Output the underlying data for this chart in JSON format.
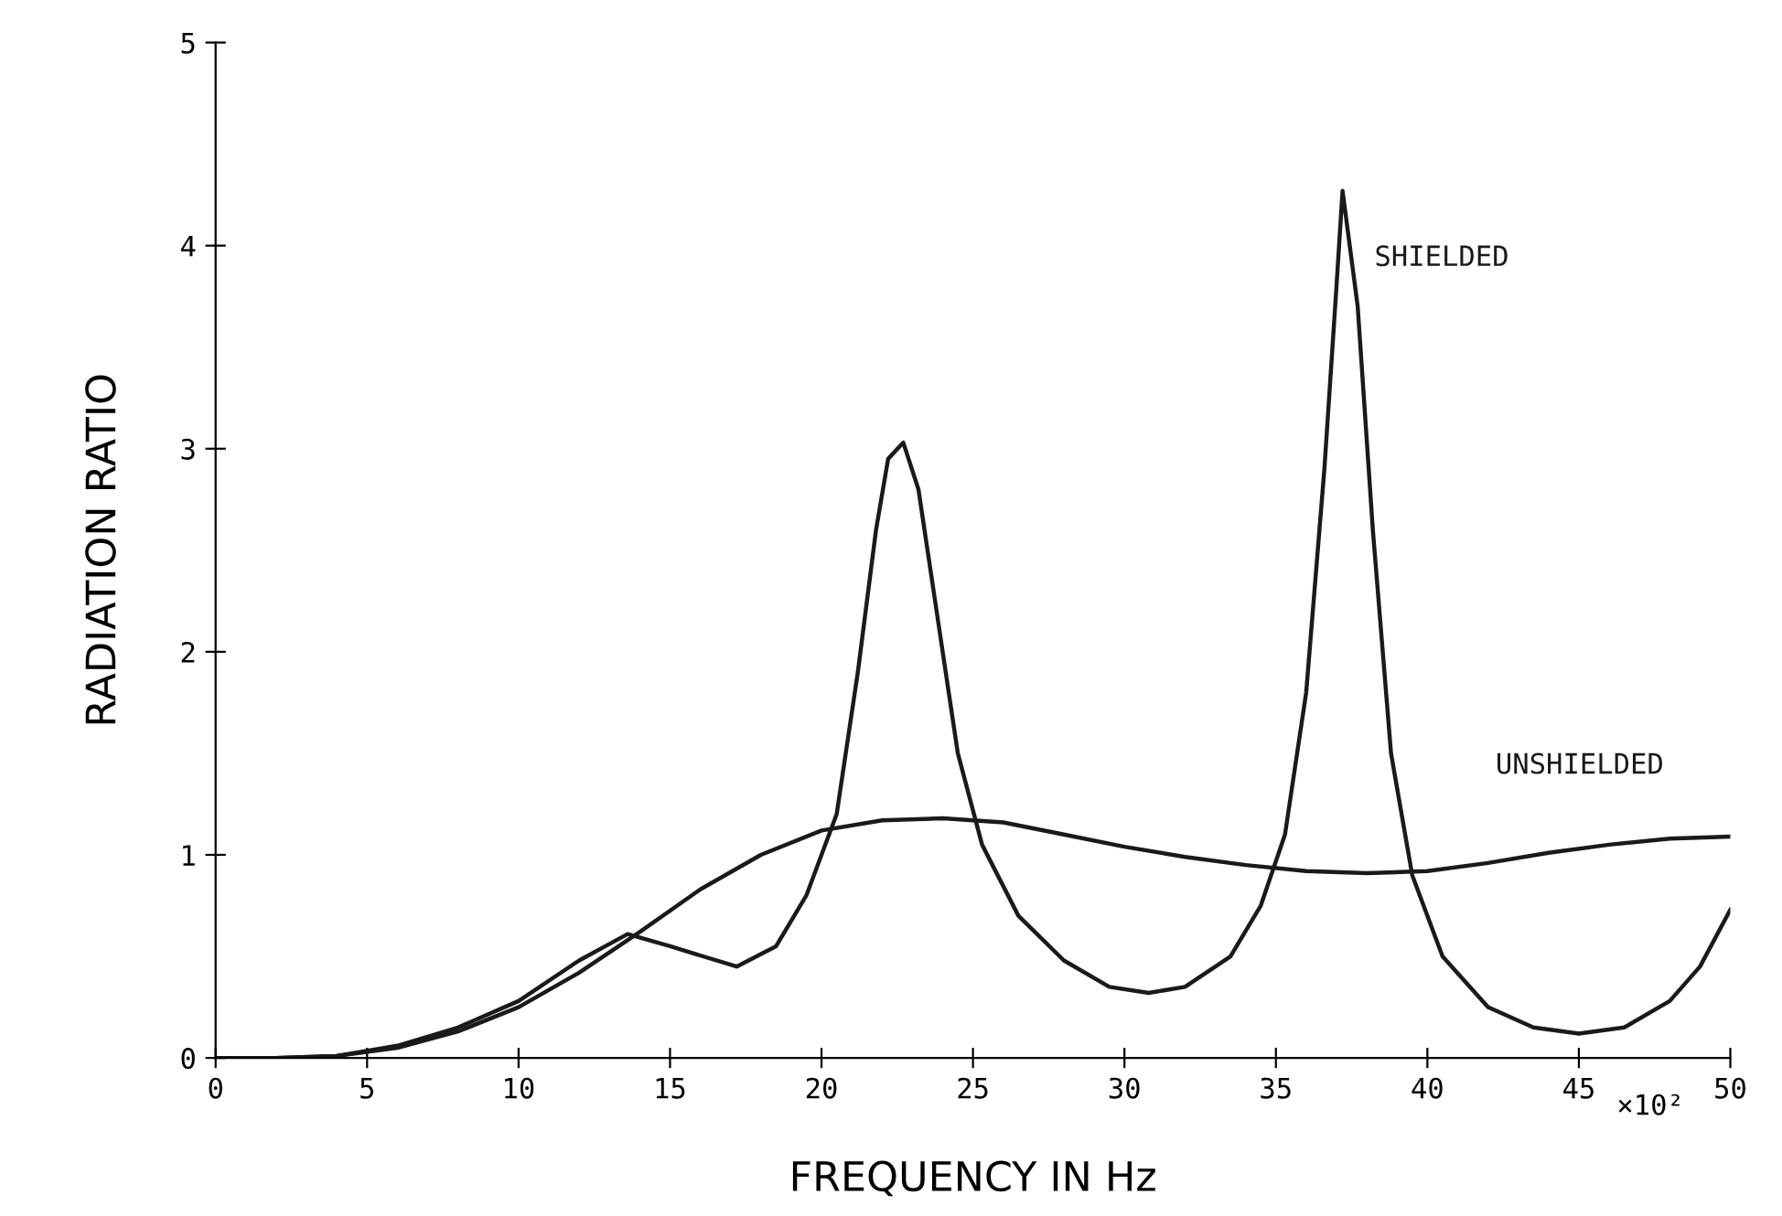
{
  "chart_data": {
    "type": "line",
    "xlabel": "FREQUENCY IN Hz",
    "ylabel": "RADIATION RATIO",
    "annotations": [
      "×10²"
    ],
    "xlim": [
      0,
      50
    ],
    "xticks": [
      0,
      5,
      10,
      15,
      20,
      25,
      30,
      35,
      40,
      45,
      50
    ],
    "ylim": [
      0,
      5
    ],
    "yticks": [
      0,
      1,
      2,
      3,
      4,
      5
    ],
    "grid": false,
    "legend": false,
    "series": [
      {
        "name": "SHIELDED",
        "color": "#1a1a1a",
        "x": [
          0,
          2,
          4,
          6,
          8,
          10,
          12,
          13.6,
          15,
          17.2,
          18.5,
          19.5,
          20.5,
          21.2,
          21.8,
          22.2,
          22.7,
          23.2,
          23.8,
          24.5,
          25.3,
          26.5,
          28,
          29.5,
          30.8,
          32,
          33.5,
          34.5,
          35.3,
          36,
          36.6,
          37.0,
          37.2,
          37.7,
          38.2,
          38.8,
          39.5,
          40.5,
          42,
          43.5,
          45,
          46.5,
          48,
          49,
          50
        ],
        "values": [
          0,
          0,
          0.01,
          0.06,
          0.15,
          0.28,
          0.48,
          0.61,
          0.55,
          0.45,
          0.55,
          0.8,
          1.2,
          1.9,
          2.6,
          2.95,
          3.03,
          2.8,
          2.2,
          1.5,
          1.05,
          0.7,
          0.48,
          0.35,
          0.32,
          0.35,
          0.5,
          0.75,
          1.1,
          1.8,
          2.9,
          3.8,
          4.27,
          3.7,
          2.6,
          1.5,
          0.9,
          0.5,
          0.25,
          0.15,
          0.12,
          0.15,
          0.28,
          0.45,
          0.73
        ]
      },
      {
        "name": "UNSHIELDED",
        "color": "#1a1a1a",
        "x": [
          0,
          2,
          4,
          6,
          8,
          10,
          12,
          14,
          16,
          18,
          20,
          22,
          24,
          26,
          28,
          30,
          32,
          34,
          36,
          38,
          40,
          42,
          44,
          46,
          48,
          50
        ],
        "values": [
          0,
          0,
          0.01,
          0.05,
          0.13,
          0.25,
          0.42,
          0.62,
          0.83,
          1.0,
          1.12,
          1.17,
          1.18,
          1.16,
          1.1,
          1.04,
          0.99,
          0.95,
          0.92,
          0.91,
          0.92,
          0.96,
          1.01,
          1.05,
          1.08,
          1.09
        ]
      }
    ]
  }
}
